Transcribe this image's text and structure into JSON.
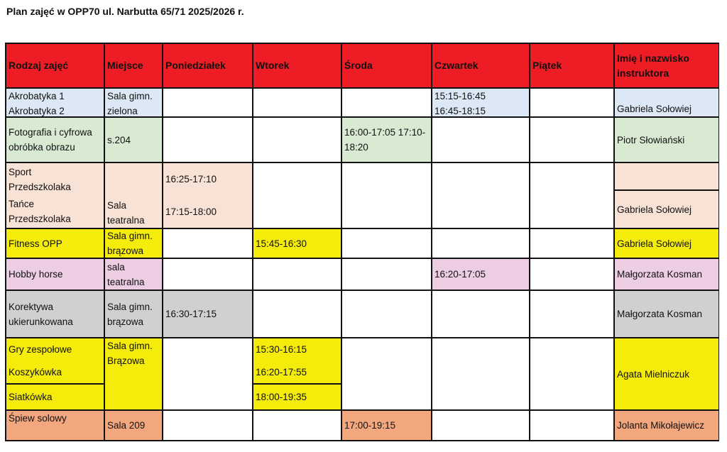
{
  "title": "Plan zajęć w OPP70 ul. Narbutta 65/71 2025/2026 r.",
  "colors": {
    "header": "#ee1c25",
    "blue": "#dce8f5",
    "green": "#d9ead3",
    "peach": "#f8e1d5",
    "yellow": "#f5ec0c",
    "pink": "#edcde3",
    "gray": "#d0d0d0",
    "salmon": "#f3a77f",
    "white": "#ffffff"
  },
  "header": [
    "Rodzaj zajęć",
    "Miejsce",
    "Poniedziałek",
    "Wtorek",
    "Środa",
    "Czwartek",
    "Piątek",
    "Imię i nazwisko instruktora"
  ],
  "rows": {
    "akrobatyka": {
      "activity": "Akrobatyka 1\nAkrobatyka 2",
      "place": "Sala gimn.\nzielona",
      "thu": "15:15-16:45\n16:45-18:15",
      "instructor": "Gabriela Sołowiej"
    },
    "fotografia": {
      "activity": "Fotografia i cyfrowa\nobróbka obrazu",
      "place": "s.204",
      "wed": "16:00-17:05 17:10-\n18:20",
      "instructor": "Piotr Słowiański"
    },
    "przedszkolaka": {
      "activity1": "Sport\nPrzedszkolaka",
      "activity2": "Tańce\nPrzedszkolaka",
      "place": "Sala\nteatralna",
      "mon1": "16:25-17:10",
      "mon2": "17:15-18:00",
      "instructor1": "",
      "instructor2": "Gabriela Sołowiej"
    },
    "fitness": {
      "activity": "Fitness OPP",
      "place": "Sala gimn.\nbrązowa",
      "tue": "15:45-16:30",
      "instructor": "Gabriela Sołowiej"
    },
    "hobby": {
      "activity": "Hobby horse",
      "place": "sala\nteatralna",
      "thu": "16:20-17:05",
      "instructor": "Małgorzata Kosman"
    },
    "korektywa": {
      "activity": "Korektywa\nukierunkowana",
      "place": "Sala gimn.\nbrązowa",
      "mon": "16:30-17:15",
      "instructor": "Małgorzata Kosman"
    },
    "gry": {
      "activity1": "Gry zespołowe",
      "activity2": "Koszykówka",
      "place": "Sala gimn.\nBrązowa",
      "tue1": "15:30-16:15",
      "tue2": "16:20-17:55",
      "instructor": "Agata Mielniczuk"
    },
    "siatkowka": {
      "activity": "Siatkówka",
      "tue": "18:00-19:35"
    },
    "spiew": {
      "activity": "Śpiew solowy",
      "place": "Sala 209",
      "wed": "17:00-19:15",
      "instructor": "Jolanta Mikołajewicz"
    }
  }
}
